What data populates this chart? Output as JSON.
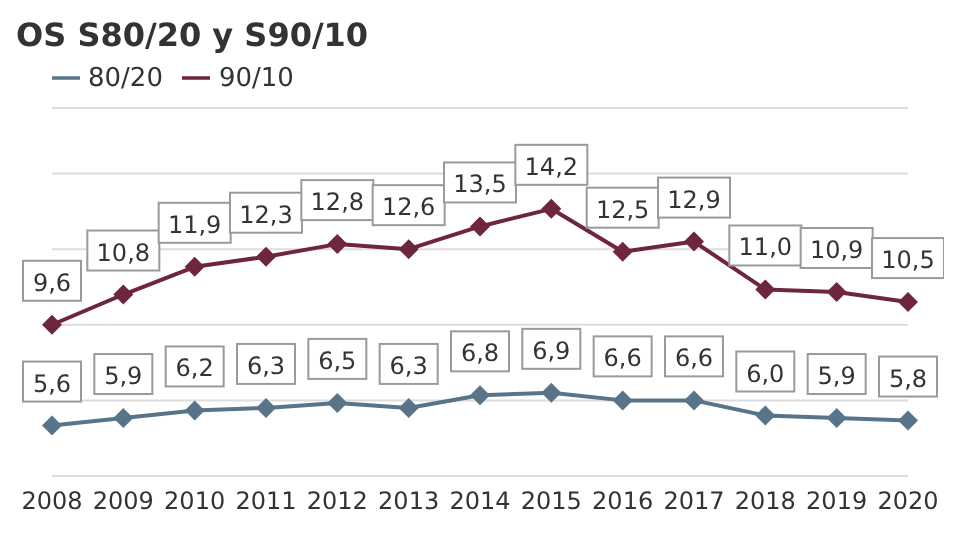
{
  "chart_data": {
    "type": "line",
    "title": "OS S80/20 y S90/10",
    "categories": [
      "2008",
      "2009",
      "2010",
      "2011",
      "2012",
      "2013",
      "2014",
      "2015",
      "2016",
      "2017",
      "2018",
      "2019",
      "2020"
    ],
    "series": [
      {
        "name": "80/20",
        "color": "#587488",
        "values": [
          5.6,
          5.9,
          6.2,
          6.3,
          6.5,
          6.3,
          6.8,
          6.9,
          6.6,
          6.6,
          6.0,
          5.9,
          5.8
        ],
        "value_labels": [
          "5,6",
          "5,9",
          "6,2",
          "6,3",
          "6,5",
          "6,3",
          "6,8",
          "6,9",
          "6,6",
          "6,6",
          "6,0",
          "5,9",
          "5,8"
        ]
      },
      {
        "name": "90/10",
        "color": "#6e2640",
        "values": [
          9.6,
          10.8,
          11.9,
          12.3,
          12.8,
          12.6,
          13.5,
          14.2,
          12.5,
          12.9,
          11.0,
          10.9,
          10.5
        ],
        "value_labels": [
          "9,6",
          "10,8",
          "11,9",
          "12,3",
          "12,8",
          "12,6",
          "13,5",
          "14,2",
          "12,5",
          "12,9",
          "11,0",
          "10,9",
          "10,5"
        ]
      }
    ],
    "tick_labels": "x",
    "grid": "y",
    "legend": "top left",
    "marker": "diamond"
  }
}
